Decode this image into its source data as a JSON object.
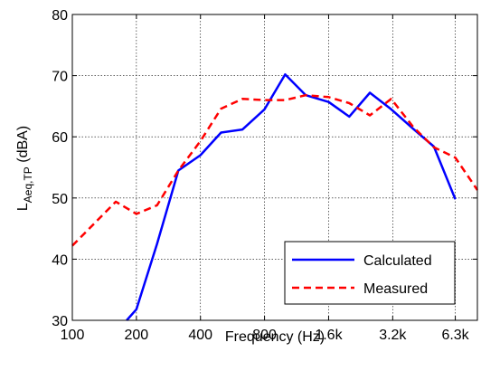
{
  "chart_data": {
    "type": "line",
    "xscale": "log",
    "xlabel": "Frequency (Hz)",
    "ylabel_main": "L",
    "ylabel_sub": "Aeq,TP",
    "ylabel_unit": " (dBA)",
    "xlim": [
      100,
      8000
    ],
    "ylim": [
      30,
      80
    ],
    "xticks": [
      {
        "value": 100,
        "label": "100"
      },
      {
        "value": 200,
        "label": "200"
      },
      {
        "value": 400,
        "label": "400"
      },
      {
        "value": 800,
        "label": "800"
      },
      {
        "value": 1600,
        "label": "1.6k"
      },
      {
        "value": 3200,
        "label": "3.2k"
      },
      {
        "value": 6300,
        "label": "6.3k"
      }
    ],
    "yticks": [
      30,
      40,
      50,
      60,
      70,
      80
    ],
    "grid": true,
    "legend_position": "bottom-right",
    "series": [
      {
        "name": "Calculated",
        "color": "#0000ff",
        "style": "solid",
        "x": [
          180,
          200,
          250,
          315,
          400,
          500,
          630,
          800,
          1000,
          1250,
          1600,
          2000,
          2500,
          3150,
          4000,
          5000,
          6300
        ],
        "y": [
          30,
          31.8,
          42.5,
          54.5,
          57,
          60.7,
          61.2,
          64.5,
          70.2,
          66.8,
          65.7,
          63.3,
          67.2,
          64.5,
          61.3,
          58.4,
          49.8
        ]
      },
      {
        "name": "Measured",
        "color": "#ff0000",
        "style": "dashed",
        "x": [
          100,
          125,
          160,
          200,
          250,
          315,
          400,
          500,
          630,
          800,
          1000,
          1250,
          1600,
          2000,
          2500,
          3150,
          4000,
          5000,
          6300,
          8000
        ],
        "y": [
          42.2,
          45.6,
          49.4,
          47.4,
          48.8,
          54.5,
          59.3,
          64.6,
          66.2,
          66.0,
          66.0,
          66.8,
          66.5,
          65.5,
          63.5,
          66.2,
          61.6,
          58.3,
          56.6,
          51.3
        ]
      }
    ]
  }
}
